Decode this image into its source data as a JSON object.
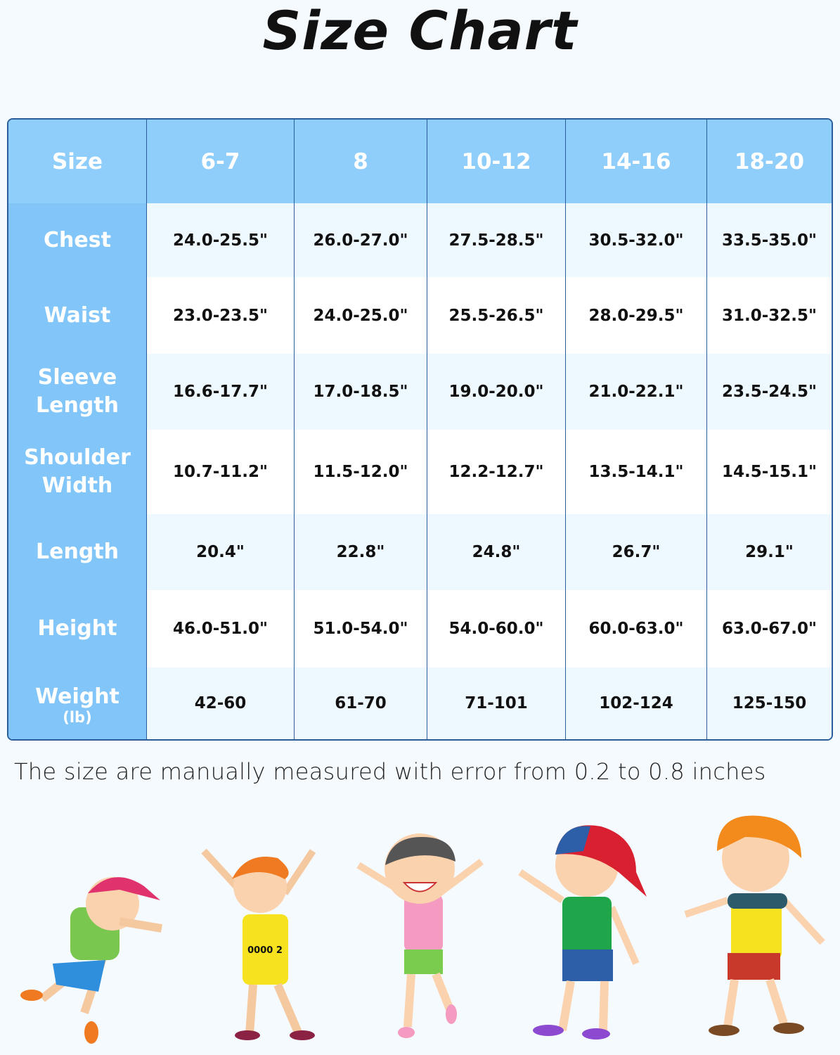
{
  "title": "Size Chart",
  "table": {
    "header": [
      "Size",
      "6-7",
      "8",
      "10-12",
      "14-16",
      "18-20"
    ],
    "rows": [
      {
        "label": "Chest",
        "unit": "",
        "values": [
          "24.0-25.5\"",
          "26.0-27.0\"",
          "27.5-28.5\"",
          "30.5-32.0\"",
          "33.5-35.0\""
        ]
      },
      {
        "label": "Waist",
        "unit": "",
        "values": [
          "23.0-23.5\"",
          "24.0-25.0\"",
          "25.5-26.5\"",
          "28.0-29.5\"",
          "31.0-32.5\""
        ]
      },
      {
        "label": "Sleeve Length",
        "unit": "",
        "values": [
          "16.6-17.7\"",
          "17.0-18.5\"",
          "19.0-20.0\"",
          "21.0-22.1\"",
          "23.5-24.5\""
        ]
      },
      {
        "label": "Shoulder Width",
        "unit": "",
        "values": [
          "10.7-11.2\"",
          "11.5-12.0\"",
          "12.2-12.7\"",
          "13.5-14.1\"",
          "14.5-15.1\""
        ]
      },
      {
        "label": "Length",
        "unit": "",
        "values": [
          "20.4\"",
          "22.8\"",
          "24.8\"",
          "26.7\"",
          "29.1\""
        ]
      },
      {
        "label": "Height",
        "unit": "",
        "values": [
          "46.0-51.0\"",
          "51.0-54.0\"",
          "54.0-60.0\"",
          "60.0-63.0\"",
          "63.0-67.0\""
        ]
      },
      {
        "label": "Weight",
        "unit": "(lb)",
        "values": [
          "42-60",
          "61-70",
          "71-101",
          "102-124",
          "125-150"
        ]
      }
    ]
  },
  "note": "The size are manually measured with error from 0.2 to 0.8 inches",
  "colors": {
    "header": "#8fcdfb",
    "label_column": "#82c6f9",
    "border": "#2a5d9a",
    "row_alt": "#eef8ff"
  },
  "illustration": {
    "jersey_text": "0000 2"
  }
}
